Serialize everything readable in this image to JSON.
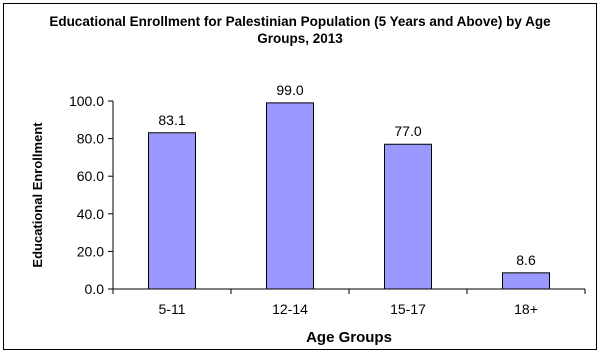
{
  "chart_data": {
    "type": "bar",
    "title": "Educational Enrollment for Palestinian Population (5 Years and Above) by Age Groups, 2013",
    "xlabel": "Age Groups",
    "ylabel": "Educational Enrollment",
    "categories": [
      "5-11",
      "12-14",
      "15-17",
      "18+"
    ],
    "values": [
      83.1,
      99.0,
      77.0,
      8.6
    ],
    "data_labels": [
      "83.1",
      "99.0",
      "77.0",
      "8.6"
    ],
    "ylim": [
      0,
      100
    ],
    "yticks": [
      "0.0",
      "20.0",
      "40.0",
      "60.0",
      "80.0",
      "100.0"
    ],
    "ytick_values": [
      0,
      20,
      40,
      60,
      80,
      100
    ],
    "grid": false,
    "legend": "none",
    "colors": {
      "bar_fill": "#9999ff",
      "bar_stroke": "#000000",
      "axis": "#000000"
    }
  }
}
